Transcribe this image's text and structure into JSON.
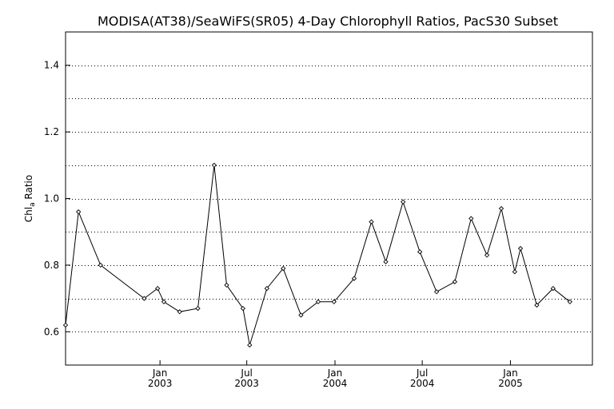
{
  "chart_data": {
    "type": "line",
    "title": "MODISA(AT38)/SeaWiFS(SR05) 4-Day Chlorophyll Ratios, PacS30 Subset",
    "ylabel_main": "Chl",
    "ylabel_sub": "a",
    "ylabel_rest": " Ratio",
    "xlabel": "",
    "ylim": [
      0.5,
      1.5
    ],
    "y_ticks": [
      "0.6",
      "0.8",
      "1.0",
      "1.2",
      "1.4"
    ],
    "y_tick_values": [
      0.6,
      0.8,
      1.0,
      1.2,
      1.4
    ],
    "grid_y_values": [
      0.6,
      0.7,
      0.8,
      0.9,
      1.0,
      1.1,
      1.2,
      1.3,
      1.4
    ],
    "grid": true,
    "xlim": [
      "2002-06-18",
      "2005-06-21"
    ],
    "x_ticks": [
      {
        "date": "2003-01-01",
        "month": "Jan",
        "year": "2003"
      },
      {
        "date": "2003-07-01",
        "month": "Jul",
        "year": "2003"
      },
      {
        "date": "2004-01-01",
        "month": "Jan",
        "year": "2004"
      },
      {
        "date": "2004-07-01",
        "month": "Jul",
        "year": "2004"
      },
      {
        "date": "2005-01-01",
        "month": "Jan",
        "year": "2005"
      }
    ],
    "series": [
      {
        "points": [
          {
            "x": "2002-06-18",
            "y": 0.62
          },
          {
            "x": "2002-07-15",
            "y": 0.96
          },
          {
            "x": "2002-08-30",
            "y": 0.8
          },
          {
            "x": "2002-11-29",
            "y": 0.7
          },
          {
            "x": "2002-12-27",
            "y": 0.73
          },
          {
            "x": "2003-01-09",
            "y": 0.69
          },
          {
            "x": "2003-02-11",
            "y": 0.66
          },
          {
            "x": "2003-03-21",
            "y": 0.67
          },
          {
            "x": "2003-04-24",
            "y": 1.1
          },
          {
            "x": "2003-05-20",
            "y": 0.74
          },
          {
            "x": "2003-06-23",
            "y": 0.67
          },
          {
            "x": "2003-07-07",
            "y": 0.56
          },
          {
            "x": "2003-08-12",
            "y": 0.73
          },
          {
            "x": "2003-09-15",
            "y": 0.79
          },
          {
            "x": "2003-10-22",
            "y": 0.65
          },
          {
            "x": "2003-11-27",
            "y": 0.69
          },
          {
            "x": "2003-12-30",
            "y": 0.69
          },
          {
            "x": "2004-02-10",
            "y": 0.76
          },
          {
            "x": "2004-03-17",
            "y": 0.93
          },
          {
            "x": "2004-04-16",
            "y": 0.81
          },
          {
            "x": "2004-05-22",
            "y": 0.99
          },
          {
            "x": "2004-06-26",
            "y": 0.84
          },
          {
            "x": "2004-07-31",
            "y": 0.72
          },
          {
            "x": "2004-09-07",
            "y": 0.75
          },
          {
            "x": "2004-10-11",
            "y": 0.94
          },
          {
            "x": "2004-11-13",
            "y": 0.83
          },
          {
            "x": "2004-12-13",
            "y": 0.97
          },
          {
            "x": "2005-01-10",
            "y": 0.78
          },
          {
            "x": "2005-01-22",
            "y": 0.85
          },
          {
            "x": "2005-02-25",
            "y": 0.68
          },
          {
            "x": "2005-03-31",
            "y": 0.73
          },
          {
            "x": "2005-05-05",
            "y": 0.69
          }
        ]
      }
    ]
  }
}
